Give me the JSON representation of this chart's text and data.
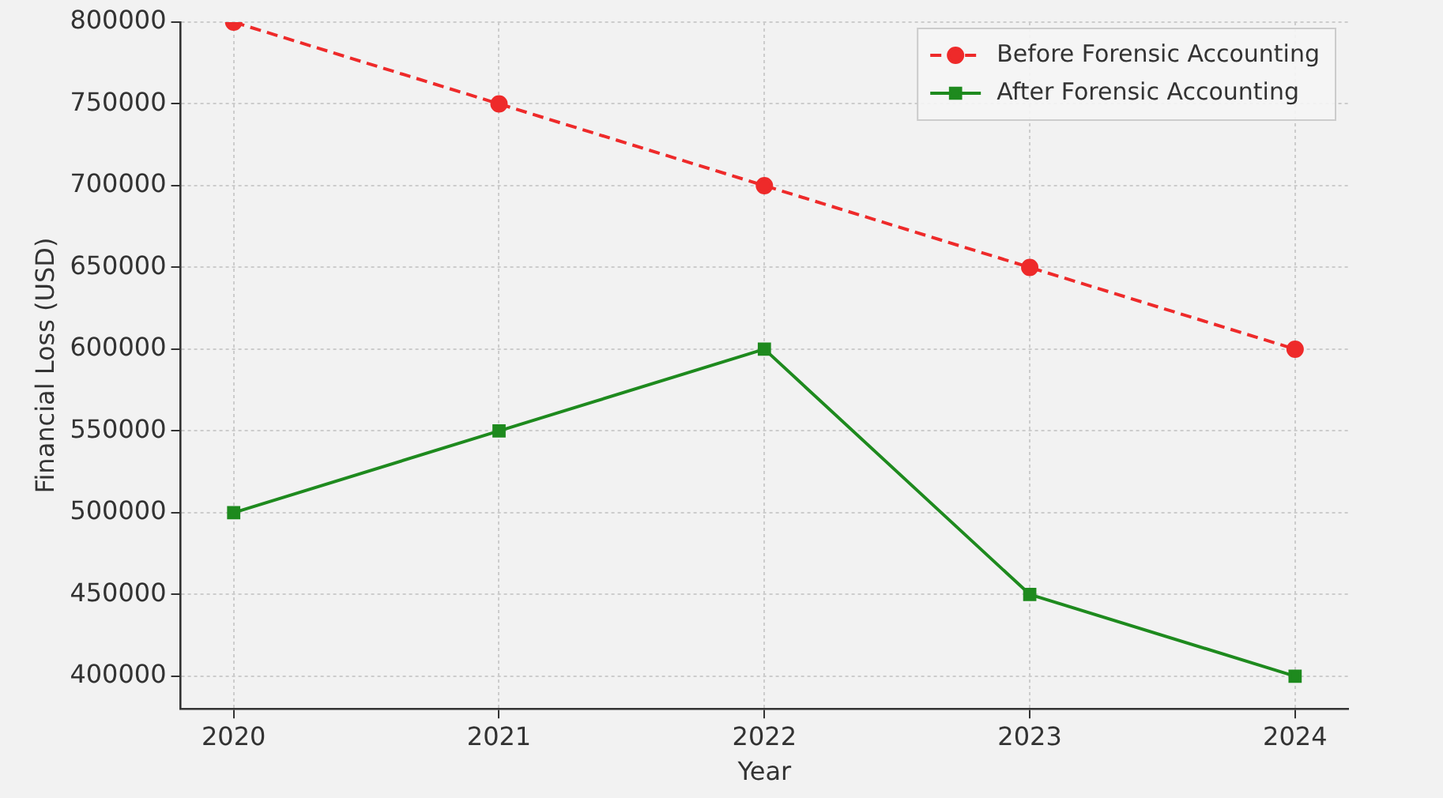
{
  "chart_data": {
    "type": "line",
    "xlabel": "Year",
    "ylabel": "Financial Loss (USD)",
    "x": [
      2020,
      2021,
      2022,
      2023,
      2024
    ],
    "series": [
      {
        "name": "Before Forensic Accounting",
        "color": "#ee2a2a",
        "values": [
          800000,
          750000,
          700000,
          650000,
          600000
        ],
        "marker": "circle",
        "line_style": "dashed"
      },
      {
        "name": "After Forensic Accounting",
        "color": "#1e8a1e",
        "values": [
          500000,
          550000,
          600000,
          450000,
          400000
        ],
        "marker": "square",
        "line_style": "solid"
      }
    ],
    "xlim": [
      2019.8,
      2024.2
    ],
    "xticks": [
      2020,
      2021,
      2022,
      2023,
      2024
    ],
    "ylim": [
      380000,
      800000
    ],
    "yticks": [
      400000,
      450000,
      500000,
      550000,
      600000,
      650000,
      700000,
      750000,
      800000
    ],
    "grid": true,
    "legend": "top right"
  }
}
